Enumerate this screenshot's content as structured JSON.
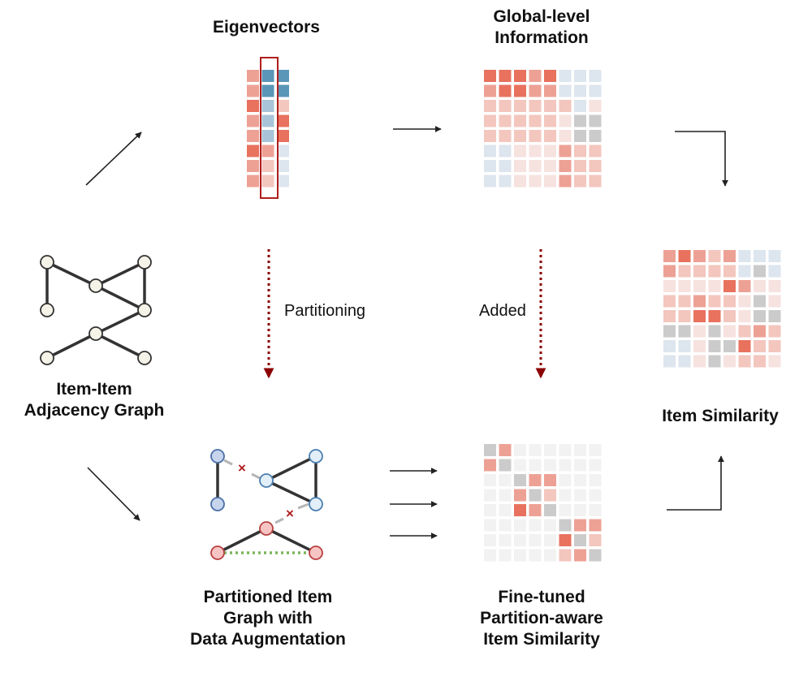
{
  "titles": {
    "eigenvectors": "Eigenvectors",
    "global": [
      "Global-level",
      "Information"
    ],
    "graph": [
      "Item-Item",
      "Adjacency Graph"
    ],
    "similarity": "Item Similarity",
    "partitioned": [
      "Partitioned Item",
      "Graph with",
      "Data Augmentation"
    ],
    "finetuned": [
      "Fine-tuned",
      "Partition-aware",
      "Item Similarity"
    ]
  },
  "labels": {
    "partitioning": "Partitioning",
    "added": "Added"
  },
  "colors": {
    "r1": "#e8725e",
    "r2": "#eda195",
    "r3": "#f3c6be",
    "r4": "#f6e2df",
    "b1": "#5a96b8",
    "b2": "#a9c4d8",
    "b3": "#dde5ee",
    "g1": "#cbcbcb",
    "w1": "#f2f2f2",
    "node_neutral": "#f5f3e8",
    "node_blue": "#c6d4ec",
    "node_lightblue": "#e2eef8",
    "node_pink": "#f7c4c4",
    "dotted_arrow": "#8b0000",
    "augment_green": "#7ab55c"
  },
  "eigen_matrix": [
    [
      "r2",
      "b1",
      "b1"
    ],
    [
      "r2",
      "b1",
      "b1"
    ],
    [
      "r1",
      "b2",
      "r3"
    ],
    [
      "r2",
      "b2",
      "r1"
    ],
    [
      "r2",
      "b2",
      "r1"
    ],
    [
      "r1",
      "r2",
      "b3"
    ],
    [
      "r2",
      "r3",
      "b3"
    ],
    [
      "r2",
      "r3",
      "b3"
    ]
  ],
  "global_matrix": [
    [
      "r1",
      "r1",
      "r1",
      "r2",
      "r1",
      "b3",
      "b3",
      "b3"
    ],
    [
      "r2",
      "r1",
      "r1",
      "r2",
      "r2",
      "b3",
      "b3",
      "b3"
    ],
    [
      "r3",
      "r3",
      "r3",
      "r3",
      "r3",
      "r3",
      "b3",
      "r4"
    ],
    [
      "r3",
      "r3",
      "r3",
      "r3",
      "r3",
      "r4",
      "g1",
      "g1"
    ],
    [
      "r3",
      "r3",
      "r3",
      "r3",
      "r3",
      "r4",
      "g1",
      "g1"
    ],
    [
      "b3",
      "b3",
      "r4",
      "r4",
      "r4",
      "r2",
      "r3",
      "r3"
    ],
    [
      "b3",
      "b3",
      "r4",
      "r4",
      "r4",
      "r2",
      "r3",
      "r3"
    ],
    [
      "b3",
      "b3",
      "r4",
      "r4",
      "r4",
      "r2",
      "r3",
      "r3"
    ]
  ],
  "similarity_matrix": [
    [
      "r2",
      "r1",
      "r2",
      "r3",
      "r2",
      "b3",
      "b3",
      "b3"
    ],
    [
      "r2",
      "r3",
      "r3",
      "r3",
      "r3",
      "b3",
      "g1",
      "b3"
    ],
    [
      "r4",
      "r4",
      "r4",
      "r4",
      "r1",
      "r2",
      "r4",
      "r4"
    ],
    [
      "r3",
      "r3",
      "r2",
      "r3",
      "r3",
      "r4",
      "g1",
      "r4"
    ],
    [
      "r3",
      "r3",
      "r1",
      "r1",
      "r3",
      "r4",
      "g1",
      "g1"
    ],
    [
      "g1",
      "g1",
      "r4",
      "g1",
      "r4",
      "r3",
      "r2",
      "r3"
    ],
    [
      "b3",
      "b3",
      "r4",
      "g1",
      "g1",
      "r1",
      "r3",
      "r3"
    ],
    [
      "b3",
      "b3",
      "r4",
      "g1",
      "r4",
      "r3",
      "r3",
      "r4"
    ]
  ],
  "finetuned_matrix": [
    [
      "g1",
      "r2",
      "w1",
      "w1",
      "w1",
      "w1",
      "w1",
      "w1"
    ],
    [
      "r2",
      "g1",
      "w1",
      "w1",
      "w1",
      "w1",
      "w1",
      "w1"
    ],
    [
      "w1",
      "w1",
      "g1",
      "r2",
      "r2",
      "w1",
      "w1",
      "w1"
    ],
    [
      "w1",
      "w1",
      "r2",
      "g1",
      "r3",
      "w1",
      "w1",
      "w1"
    ],
    [
      "w1",
      "w1",
      "r1",
      "r2",
      "g1",
      "w1",
      "w1",
      "w1"
    ],
    [
      "w1",
      "w1",
      "w1",
      "w1",
      "w1",
      "g1",
      "r2",
      "r2"
    ],
    [
      "w1",
      "w1",
      "w1",
      "w1",
      "w1",
      "r1",
      "g1",
      "r3"
    ],
    [
      "w1",
      "w1",
      "w1",
      "w1",
      "w1",
      "r3",
      "r2",
      "g1"
    ]
  ]
}
